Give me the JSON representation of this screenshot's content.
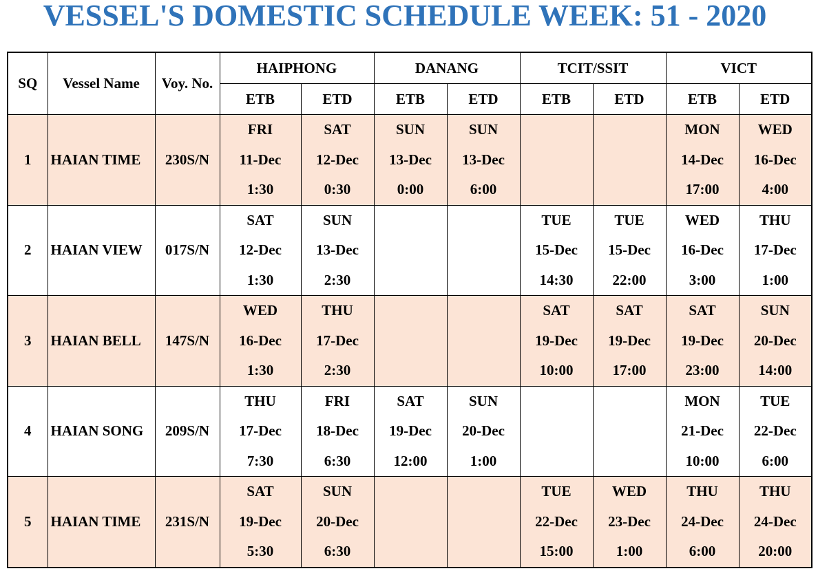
{
  "title": "VESSEL'S DOMESTIC SCHEDULE WEEK: 51 - 2020",
  "headers": {
    "sq": "SQ",
    "vessel": "Vessel Name",
    "voy": "Voy. No.",
    "ports": [
      "HAIPHONG",
      "DANANG",
      "TCIT/SSIT",
      "VICT"
    ],
    "etb": "ETB",
    "etd": "ETD"
  },
  "colors": {
    "title": "#2f73b9",
    "row_shade": "#fce4d6"
  },
  "rows": [
    {
      "sq": "1",
      "vessel": "HAIAN TIME",
      "voy": "230S/N",
      "cells": [
        [
          "FRI",
          "11-Dec",
          "1:30"
        ],
        [
          "SAT",
          "12-Dec",
          "0:30"
        ],
        [
          "SUN",
          "13-Dec",
          "0:00"
        ],
        [
          "SUN",
          "13-Dec",
          "6:00"
        ],
        [
          "",
          "",
          ""
        ],
        [
          "",
          "",
          ""
        ],
        [
          "MON",
          "14-Dec",
          "17:00"
        ],
        [
          "WED",
          "16-Dec",
          "4:00"
        ]
      ]
    },
    {
      "sq": "2",
      "vessel": "HAIAN VIEW",
      "voy": "017S/N",
      "cells": [
        [
          "SAT",
          "12-Dec",
          "1:30"
        ],
        [
          "SUN",
          "13-Dec",
          "2:30"
        ],
        [
          "",
          "",
          ""
        ],
        [
          "",
          "",
          ""
        ],
        [
          "TUE",
          "15-Dec",
          "14:30"
        ],
        [
          "TUE",
          "15-Dec",
          "22:00"
        ],
        [
          "WED",
          "16-Dec",
          "3:00"
        ],
        [
          "THU",
          "17-Dec",
          "1:00"
        ]
      ]
    },
    {
      "sq": "3",
      "vessel": "HAIAN BELL",
      "voy": "147S/N",
      "cells": [
        [
          "WED",
          "16-Dec",
          "1:30"
        ],
        [
          "THU",
          "17-Dec",
          "2:30"
        ],
        [
          "",
          "",
          ""
        ],
        [
          "",
          "",
          ""
        ],
        [
          "SAT",
          "19-Dec",
          "10:00"
        ],
        [
          "SAT",
          "19-Dec",
          "17:00"
        ],
        [
          "SAT",
          "19-Dec",
          "23:00"
        ],
        [
          "SUN",
          "20-Dec",
          "14:00"
        ]
      ]
    },
    {
      "sq": "4",
      "vessel": "HAIAN SONG",
      "voy": "209S/N",
      "cells": [
        [
          "THU",
          "17-Dec",
          "7:30"
        ],
        [
          "FRI",
          "18-Dec",
          "6:30"
        ],
        [
          "SAT",
          "19-Dec",
          "12:00"
        ],
        [
          "SUN",
          "20-Dec",
          "1:00"
        ],
        [
          "",
          "",
          ""
        ],
        [
          "",
          "",
          ""
        ],
        [
          "MON",
          "21-Dec",
          "10:00"
        ],
        [
          "TUE",
          "22-Dec",
          "6:00"
        ]
      ]
    },
    {
      "sq": "5",
      "vessel": "HAIAN TIME",
      "voy": "231S/N",
      "cells": [
        [
          "SAT",
          "19-Dec",
          "5:30"
        ],
        [
          "SUN",
          "20-Dec",
          "6:30"
        ],
        [
          "",
          "",
          ""
        ],
        [
          "",
          "",
          ""
        ],
        [
          "TUE",
          "22-Dec",
          "15:00"
        ],
        [
          "WED",
          "23-Dec",
          "1:00"
        ],
        [
          "THU",
          "24-Dec",
          "6:00"
        ],
        [
          "THU",
          "24-Dec",
          "20:00"
        ]
      ]
    }
  ]
}
